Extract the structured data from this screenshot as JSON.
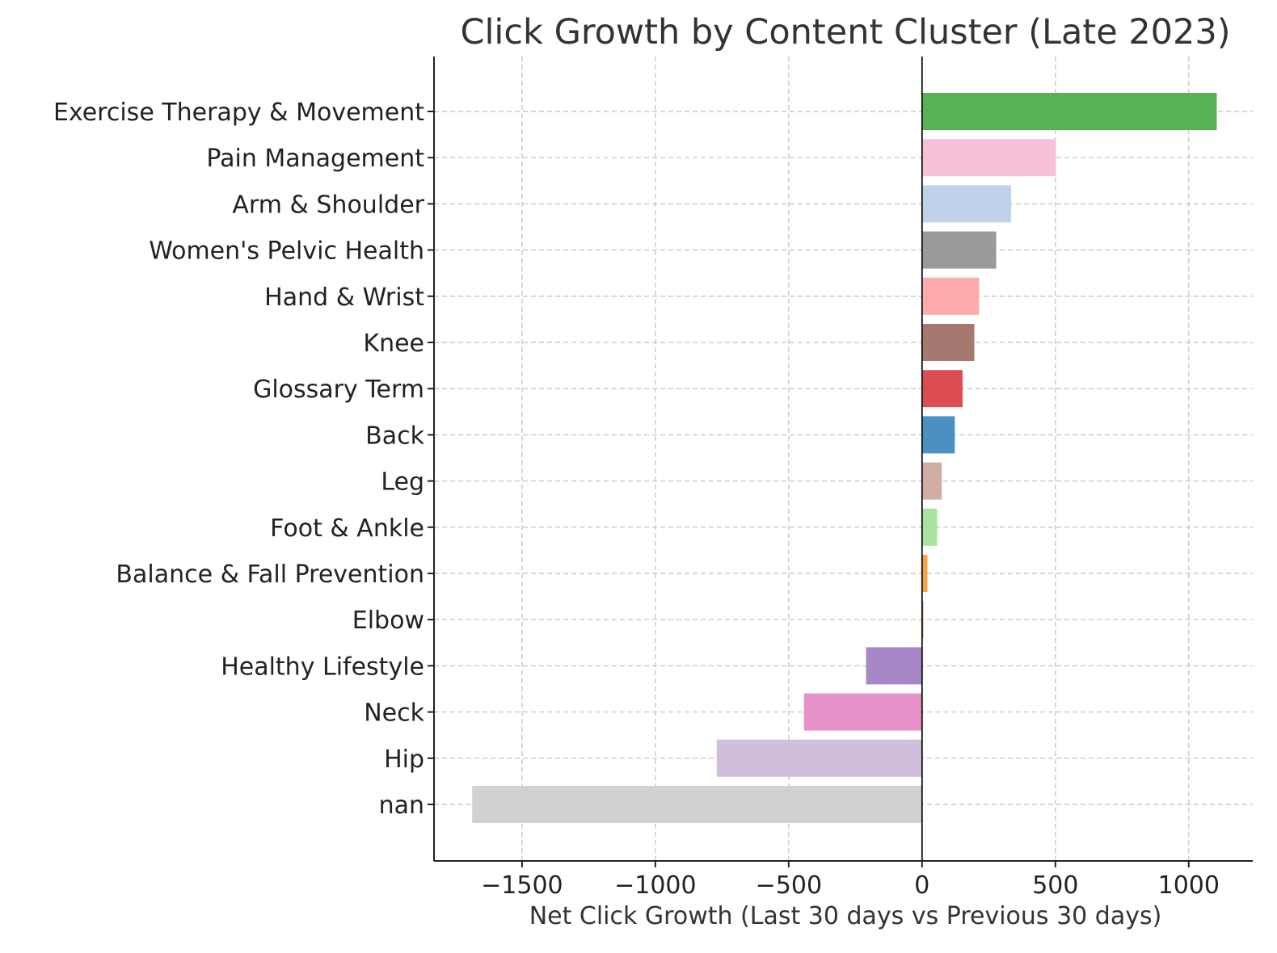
{
  "chart_data": {
    "type": "bar",
    "orientation": "horizontal",
    "title": "Click Growth by Content Cluster (Late 2023)",
    "xlabel": "Net Click Growth (Last 30 days vs Previous 30 days)",
    "ylabel": "",
    "xlim": [
      -1830,
      1240
    ],
    "xticks": [
      -1500,
      -1000,
      -500,
      0,
      500,
      1000
    ],
    "xtick_labels": [
      "−1500",
      "−1000",
      "−500",
      "0",
      "500",
      "1000"
    ],
    "grid": true,
    "categories": [
      "Exercise Therapy & Movement",
      "Pain Management",
      "Arm & Shoulder",
      "Women's Pelvic Health",
      "Hand & Wrist",
      "Knee",
      "Glossary Term",
      "Back",
      "Leg",
      "Foot & Ankle",
      "Balance & Fall Prevention",
      "Elbow",
      "Healthy Lifestyle",
      "Neck",
      "Hip",
      "nan"
    ],
    "values": [
      1105,
      502,
      334,
      278,
      214,
      196,
      152,
      123,
      74,
      57,
      20,
      5,
      -210,
      -443,
      -770,
      -1687
    ],
    "colors": [
      "#55b255",
      "#f6c0d6",
      "#bfd2ea",
      "#9a9a9a",
      "#fcaaaa",
      "#a57870",
      "#dc4d51",
      "#4a90c2",
      "#cfaea6",
      "#ace2a0",
      "#fa9e49",
      "#e4946a",
      "#a787c8",
      "#e791c9",
      "#d1bedb",
      "#d1d1d1"
    ]
  }
}
